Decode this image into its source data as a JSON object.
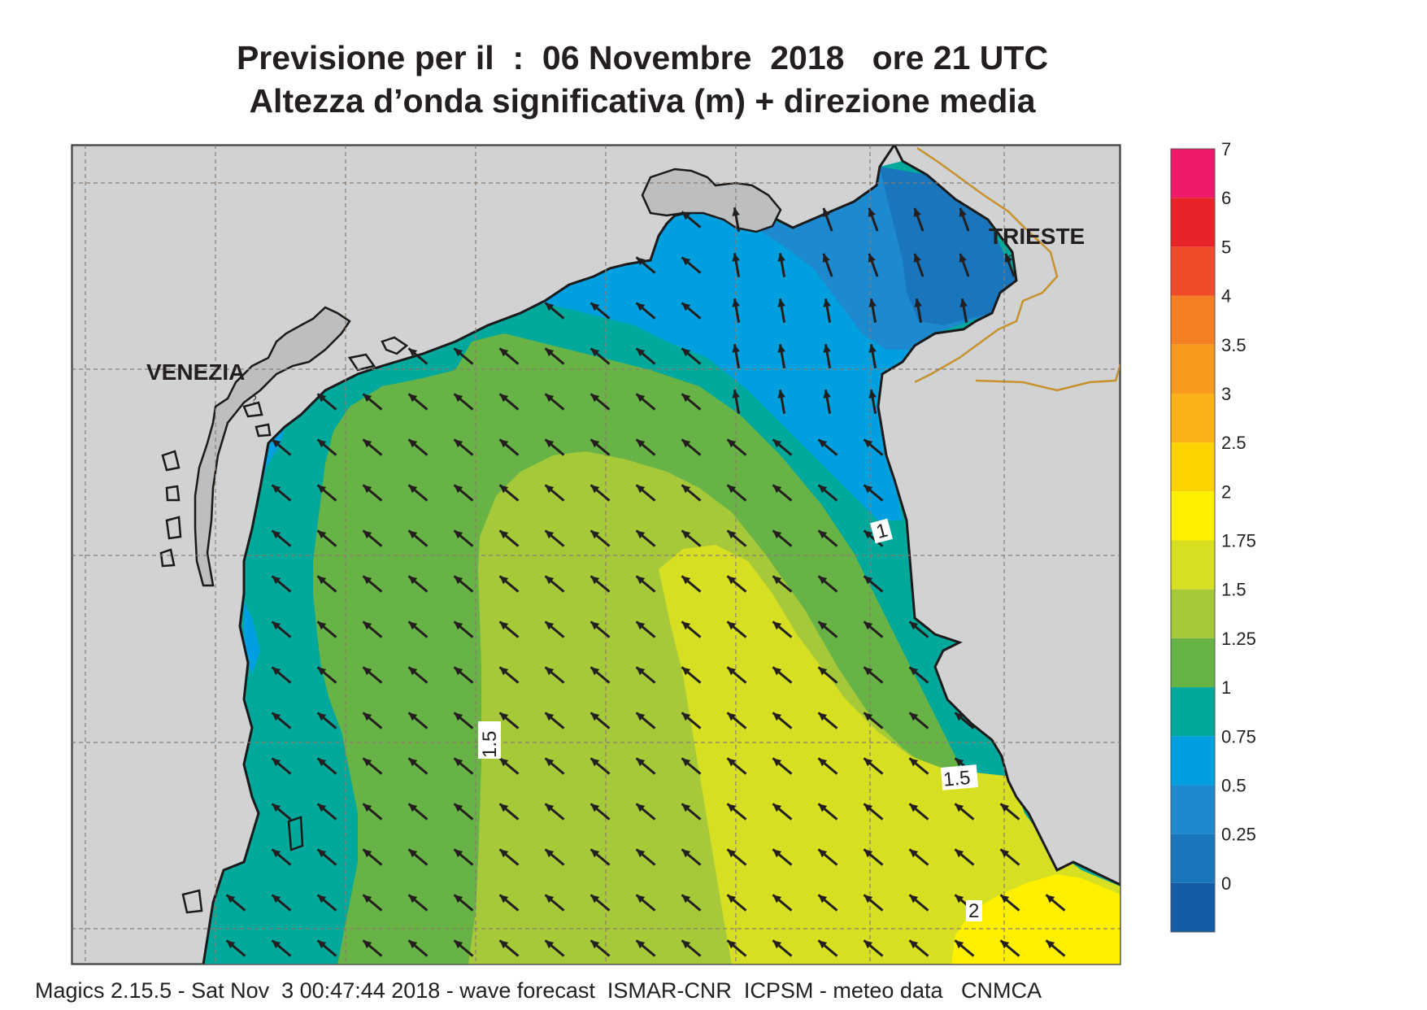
{
  "title": {
    "line1": "Previsione per il  :  06 Novembre  2018   ore 21 UTC",
    "line2": "Altezza d’onda significativa (m) + direzione media"
  },
  "places": {
    "venezia": "VENEZIA",
    "trieste": "TRIESTE",
    "unknown_marker": "?"
  },
  "contour_labels": {
    "label_1": "1",
    "label_1_5_west": "1.5",
    "label_1_5_east": "1.5",
    "label_2": "2"
  },
  "legend": {
    "items": [
      {
        "label": "7",
        "color": "#ee1a6b"
      },
      {
        "label": "6",
        "color": "#e72228"
      },
      {
        "label": "5",
        "color": "#ef4a2a"
      },
      {
        "label": "4",
        "color": "#f57f23"
      },
      {
        "label": "3.5",
        "color": "#f89a1e"
      },
      {
        "label": "3",
        "color": "#fbb219"
      },
      {
        "label": "2.5",
        "color": "#fdd200"
      },
      {
        "label": "2",
        "color": "#fff000"
      },
      {
        "label": "1.75",
        "color": "#d7df22"
      },
      {
        "label": "1.5",
        "color": "#a6c93a"
      },
      {
        "label": "1.25",
        "color": "#68b345"
      },
      {
        "label": "1",
        "color": "#00a99c"
      },
      {
        "label": "0.75",
        "color": "#009fdf"
      },
      {
        "label": "0.5",
        "color": "#1d8ad0"
      },
      {
        "label": "0.25",
        "color": "#1976bc"
      },
      {
        "label": "0",
        "color": "#155ca6"
      }
    ]
  },
  "footer": "Magics 2.15.5 - Sat Nov  3 00:47:44 2018 - wave forecast  ISMAR-CNR  ICPSM - meteo data   CNMCA",
  "colors": {
    "land": "#d1d2d4",
    "coast": "#1a1a1a",
    "border": "#c7922b",
    "grid": "#8a7d70",
    "arrow": "#231f20"
  },
  "wave_direction": "north-west"
}
